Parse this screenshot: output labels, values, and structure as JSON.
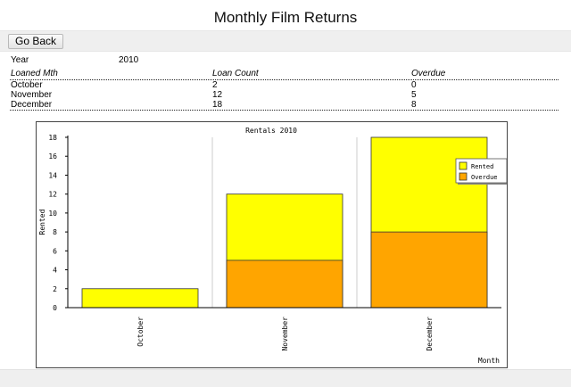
{
  "page": {
    "title": "Monthly Film Returns"
  },
  "toolbar": {
    "back_label": "Go Back"
  },
  "report": {
    "year_label": "Year",
    "year_value": "2010",
    "headers": [
      "Loaned Mth",
      "Loan Count",
      "Overdue"
    ],
    "rows": [
      {
        "month": "October",
        "count": "2",
        "overdue": "0"
      },
      {
        "month": "November",
        "count": "12",
        "overdue": "5"
      },
      {
        "month": "December",
        "count": "18",
        "overdue": "8"
      }
    ]
  },
  "chart_data": {
    "type": "bar",
    "stacked": false,
    "title": "Rentals 2010",
    "xlabel": "Month",
    "ylabel": "Rented",
    "categories": [
      "October",
      "November",
      "December"
    ],
    "ylim": [
      0,
      18
    ],
    "yticks": [
      0,
      2,
      4,
      6,
      8,
      10,
      12,
      14,
      16,
      18
    ],
    "series": [
      {
        "name": "Rented",
        "values": [
          2,
          12,
          18
        ],
        "color": "#ffff00"
      },
      {
        "name": "Overdue",
        "values": [
          0,
          5,
          8
        ],
        "color": "#ffa500"
      }
    ],
    "legend_position": "right"
  }
}
